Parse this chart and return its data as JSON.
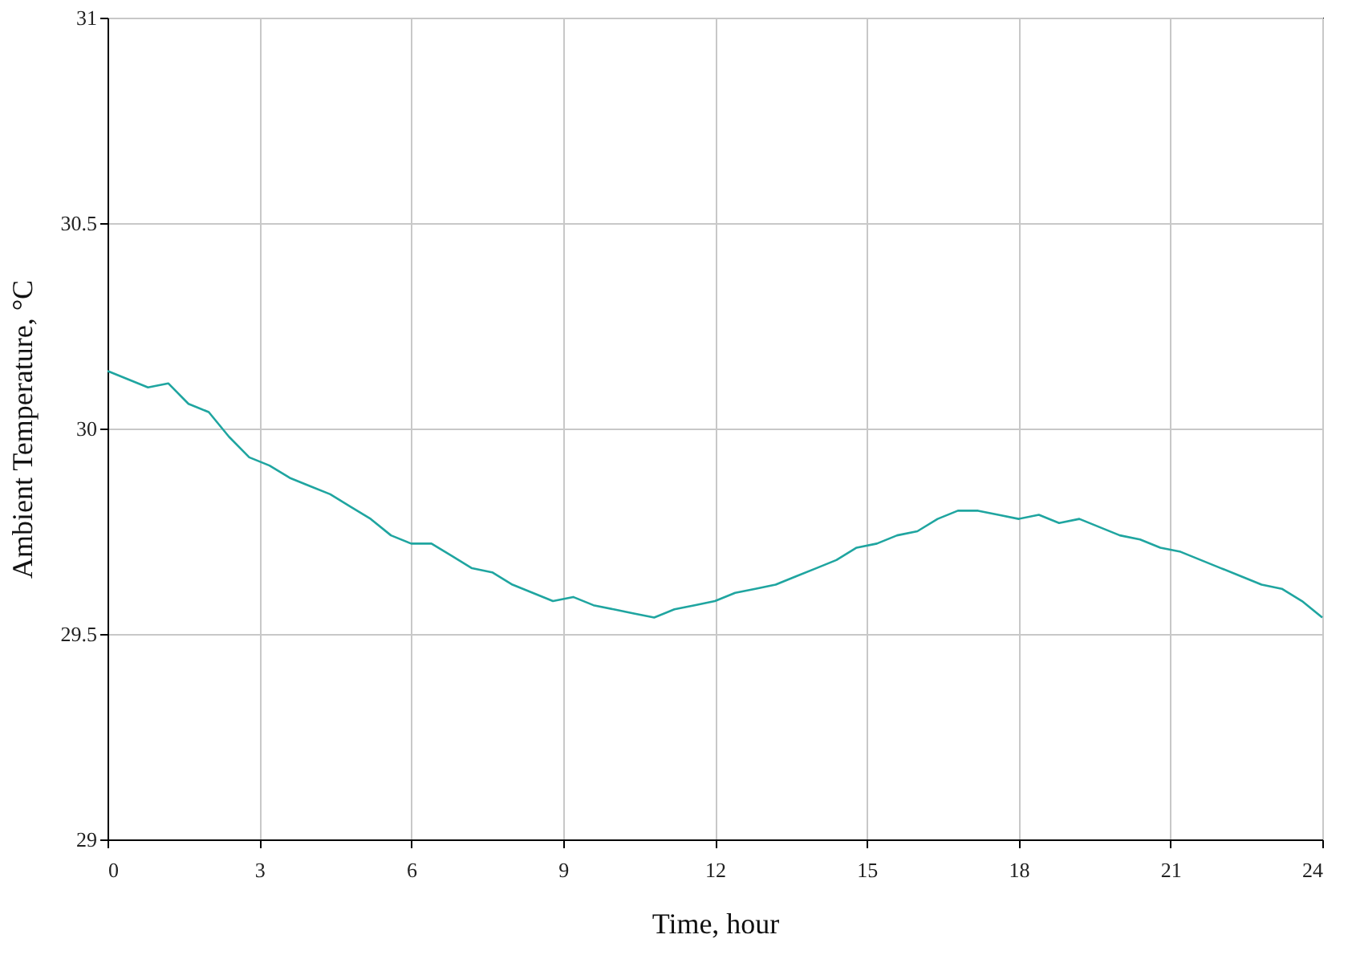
{
  "chart_data": {
    "type": "line",
    "xlabel": "Time,  hour",
    "ylabel": "Ambient Temperature,  °C",
    "x": [
      0,
      0.4,
      0.8,
      1.2,
      1.6,
      2.0,
      2.4,
      2.8,
      3.2,
      3.6,
      4.0,
      4.4,
      4.8,
      5.2,
      5.6,
      6.0,
      6.4,
      6.8,
      7.2,
      7.6,
      8.0,
      8.4,
      8.8,
      9.2,
      9.6,
      10.0,
      10.4,
      10.8,
      11.2,
      11.6,
      12.0,
      12.4,
      12.8,
      13.2,
      13.6,
      14.0,
      14.4,
      14.8,
      15.2,
      15.6,
      16.0,
      16.4,
      16.8,
      17.2,
      17.6,
      18.0,
      18.4,
      18.8,
      19.2,
      19.6,
      20.0,
      20.4,
      20.8,
      21.2,
      21.6,
      22.0,
      22.4,
      22.8,
      23.2,
      23.6,
      24.0
    ],
    "series": [
      {
        "color": "#1fa5a0",
        "values": [
          30.14,
          30.12,
          30.1,
          30.11,
          30.06,
          30.04,
          29.98,
          29.93,
          29.91,
          29.88,
          29.86,
          29.84,
          29.81,
          29.78,
          29.74,
          29.72,
          29.72,
          29.69,
          29.66,
          29.65,
          29.62,
          29.6,
          29.58,
          29.59,
          29.57,
          29.56,
          29.55,
          29.54,
          29.56,
          29.57,
          29.58,
          29.6,
          29.61,
          29.62,
          29.64,
          29.66,
          29.68,
          29.71,
          29.72,
          29.74,
          29.75,
          29.78,
          29.8,
          29.8,
          29.79,
          29.78,
          29.79,
          29.77,
          29.78,
          29.76,
          29.74,
          29.73,
          29.71,
          29.7,
          29.68,
          29.66,
          29.64,
          29.62,
          29.61,
          29.58,
          29.54
        ]
      }
    ],
    "xlim": [
      0,
      24
    ],
    "xticks": [
      0,
      3,
      6,
      9,
      12,
      15,
      18,
      21,
      24
    ],
    "ylim": [
      29,
      31
    ],
    "yticks": [
      29,
      29.5,
      30,
      30.5,
      31
    ],
    "grid": true,
    "legend": false,
    "marker": "none",
    "line_style": "solid"
  }
}
